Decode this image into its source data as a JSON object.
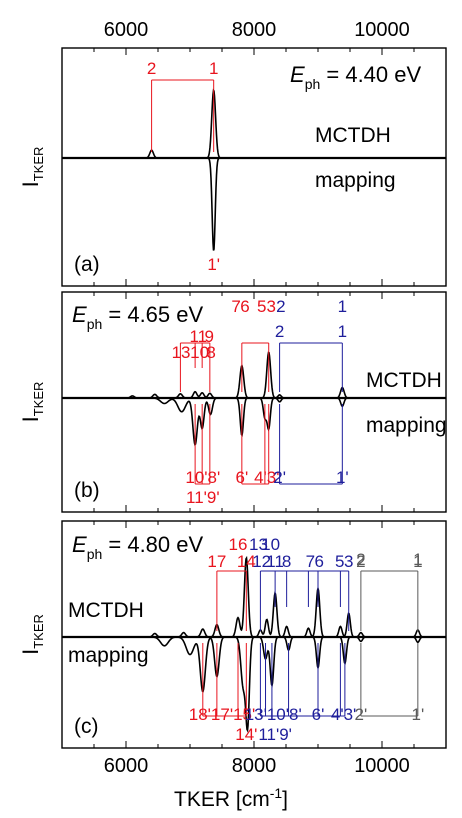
{
  "chart_data": {
    "type": "line",
    "xlabel": "TKER [cm",
    "xlabel_sup": "-1",
    "xlabel_close": "]",
    "ylabel": "I",
    "ylabel_sub": "TKER",
    "xlim": [
      5000,
      11000
    ],
    "xticks": [
      6000,
      8000,
      10000
    ],
    "colors": {
      "red": "#e8141e",
      "blue": "#1e1e9b",
      "gray": "#5a5a5a",
      "black": "#000000"
    },
    "panels": [
      {
        "id": "a",
        "panel_label": "(a)",
        "ephoton_symbol": "E",
        "ephoton_sub": "ph",
        "ephoton_value": "= 4.40 eV",
        "upper_label": "MCTDH",
        "lower_label": "mapping",
        "upper_peaks": [
          {
            "x": 6400,
            "h": 0.1,
            "w": 28
          },
          {
            "x": 7370,
            "h": 0.87,
            "w": 30
          }
        ],
        "lower_peaks": [
          {
            "x": 7370,
            "h": 0.95,
            "w": 24
          }
        ],
        "brackets": [
          {
            "color": "red",
            "side": "up",
            "xs": [
              6400,
              7370
            ],
            "labels": [
              "2",
              "1"
            ]
          }
        ],
        "lower_labels": [
          {
            "text": "1'",
            "x": 7370,
            "color": "red"
          }
        ]
      },
      {
        "id": "b",
        "panel_label": "(b)",
        "ephoton_symbol": "E",
        "ephoton_sub": "ph",
        "ephoton_value": "= 4.65 eV",
        "upper_label": "MCTDH",
        "lower_label": "mapping",
        "upper_peaks": [
          {
            "x": 6100,
            "h": 0.04,
            "w": 30
          },
          {
            "x": 6450,
            "h": 0.07,
            "w": 30
          },
          {
            "x": 6850,
            "h": 0.08,
            "w": 30
          },
          {
            "x": 7080,
            "h": 0.12,
            "w": 28
          },
          {
            "x": 7190,
            "h": 0.1,
            "w": 28
          },
          {
            "x": 7310,
            "h": 0.09,
            "w": 28
          },
          {
            "x": 7810,
            "h": 0.62,
            "w": 30
          },
          {
            "x": 8230,
            "h": 0.88,
            "w": 30
          },
          {
            "x": 8400,
            "h": 0.06,
            "w": 25
          },
          {
            "x": 9380,
            "h": 0.2,
            "w": 28
          }
        ],
        "lower_peaks": [
          {
            "x": 6600,
            "h": 0.1,
            "w": 60
          },
          {
            "x": 6870,
            "h": 0.25,
            "w": 60
          },
          {
            "x": 7080,
            "h": 0.85,
            "w": 35
          },
          {
            "x": 7190,
            "h": 0.55,
            "w": 30
          },
          {
            "x": 7320,
            "h": 0.3,
            "w": 30
          },
          {
            "x": 7810,
            "h": 0.68,
            "w": 25
          },
          {
            "x": 8170,
            "h": 0.35,
            "w": 25
          },
          {
            "x": 8230,
            "h": 0.55,
            "w": 25
          },
          {
            "x": 8400,
            "h": 0.07,
            "w": 25
          },
          {
            "x": 9380,
            "h": 0.15,
            "w": 25
          }
        ],
        "brackets": [
          {
            "color": "red",
            "side": "up",
            "xs": [
              6850,
              7080,
              7190,
              7310
            ],
            "labels": [
              "13",
              "10",
              "11",
              "9",
              "8"
            ],
            "label_mode": "stacked"
          },
          {
            "color": "red",
            "side": "up",
            "xs": [
              7810,
              8230
            ],
            "labels": [
              "7",
              "6",
              "5",
              "3"
            ],
            "label_mode": "pairs"
          },
          {
            "color": "blue",
            "side": "up",
            "xs": [
              8400,
              9380
            ],
            "labels": [
              "2",
              "1"
            ]
          },
          {
            "color": "red",
            "side": "down",
            "xs": [
              7080,
              7190,
              7310
            ],
            "labels": [],
            "label_mode": "none"
          },
          {
            "color": "red",
            "side": "down",
            "xs": [
              7810,
              8170,
              8230
            ],
            "labels": [],
            "label_mode": "none"
          },
          {
            "color": "blue",
            "side": "down",
            "xs": [
              8400,
              9380
            ],
            "labels": [],
            "label_mode": "none"
          }
        ],
        "lower_labels": [
          {
            "text": "10'8'",
            "x": 7200,
            "row": 0,
            "color": "red"
          },
          {
            "text": "11'9'",
            "x": 7200,
            "row": 1,
            "color": "red"
          },
          {
            "text": "6'",
            "x": 7810,
            "row": 0,
            "color": "red"
          },
          {
            "text": "4'3'",
            "x": 8200,
            "row": 0,
            "color": "red"
          },
          {
            "text": "2'",
            "x": 8400,
            "row": 0,
            "color": "blue"
          },
          {
            "text": "1'",
            "x": 9380,
            "row": 0,
            "color": "blue"
          }
        ],
        "upper_stack_labels": [
          {
            "text": "11",
            "x": 7130,
            "row": 1,
            "color": "red"
          },
          {
            "text": "9",
            "x": 7300,
            "row": 1,
            "color": "red"
          },
          {
            "text": "13",
            "x": 6860,
            "row": 0,
            "color": "red"
          },
          {
            "text": "10",
            "x": 7150,
            "row": 0,
            "color": "red"
          },
          {
            "text": "8",
            "x": 7330,
            "row": 0,
            "color": "red"
          },
          {
            "text": "7",
            "x": 7720,
            "row": 2,
            "color": "red"
          },
          {
            "text": "6",
            "x": 7860,
            "row": 2,
            "color": "red"
          },
          {
            "text": "5",
            "x": 8120,
            "row": 2,
            "color": "red"
          },
          {
            "text": "3",
            "x": 8270,
            "row": 2,
            "color": "red"
          },
          {
            "text": "2",
            "x": 8420,
            "row": 2,
            "color": "blue"
          },
          {
            "text": "1",
            "x": 9380,
            "row": 2,
            "color": "blue"
          }
        ]
      },
      {
        "id": "c",
        "panel_label": "(c)",
        "ephoton_symbol": "E",
        "ephoton_sub": "ph",
        "ephoton_value": "= 4.80 eV",
        "upper_label": "MCTDH",
        "lower_label": "mapping",
        "upper_peaks": [
          {
            "x": 6450,
            "h": 0.04,
            "w": 30
          },
          {
            "x": 6900,
            "h": 0.05,
            "w": 30
          },
          {
            "x": 7200,
            "h": 0.09,
            "w": 30
          },
          {
            "x": 7420,
            "h": 0.14,
            "w": 30
          },
          {
            "x": 7750,
            "h": 0.22,
            "w": 30
          },
          {
            "x": 7880,
            "h": 0.9,
            "w": 30
          },
          {
            "x": 8100,
            "h": 0.08,
            "w": 25
          },
          {
            "x": 8200,
            "h": 0.2,
            "w": 25
          },
          {
            "x": 8330,
            "h": 0.5,
            "w": 28
          },
          {
            "x": 8510,
            "h": 0.12,
            "w": 25
          },
          {
            "x": 8850,
            "h": 0.1,
            "w": 25
          },
          {
            "x": 9000,
            "h": 0.55,
            "w": 28
          },
          {
            "x": 9350,
            "h": 0.12,
            "w": 25
          },
          {
            "x": 9480,
            "h": 0.27,
            "w": 25
          },
          {
            "x": 9670,
            "h": 0.05,
            "w": 25
          },
          {
            "x": 10560,
            "h": 0.08,
            "w": 25
          }
        ],
        "lower_peaks": [
          {
            "x": 6600,
            "h": 0.1,
            "w": 60
          },
          {
            "x": 7000,
            "h": 0.2,
            "w": 60
          },
          {
            "x": 7200,
            "h": 0.62,
            "w": 40
          },
          {
            "x": 7420,
            "h": 0.45,
            "w": 35
          },
          {
            "x": 7830,
            "h": 0.55,
            "w": 35
          },
          {
            "x": 7900,
            "h": 0.98,
            "w": 28
          },
          {
            "x": 8180,
            "h": 0.25,
            "w": 30
          },
          {
            "x": 8280,
            "h": 0.55,
            "w": 28
          },
          {
            "x": 8540,
            "h": 0.15,
            "w": 25
          },
          {
            "x": 9000,
            "h": 0.35,
            "w": 25
          },
          {
            "x": 9420,
            "h": 0.3,
            "w": 25
          },
          {
            "x": 9670,
            "h": 0.05,
            "w": 25
          },
          {
            "x": 10560,
            "h": 0.06,
            "w": 25
          }
        ],
        "brackets": [
          {
            "color": "red",
            "side": "up",
            "xs": [
              7420,
              7880
            ],
            "labels": [],
            "label_mode": "none"
          },
          {
            "color": "blue",
            "side": "up",
            "xs": [
              8100,
              8330,
              8510,
              8850,
              9000,
              9350,
              9480
            ],
            "labels": [],
            "label_mode": "none"
          },
          {
            "color": "gray",
            "side": "up",
            "xs": [
              9670,
              10560
            ],
            "labels": [
              "2",
              "1"
            ]
          },
          {
            "color": "red",
            "side": "down",
            "xs": [
              7200,
              7420,
              7750,
              7880
            ],
            "labels": [],
            "label_mode": "none"
          },
          {
            "color": "blue",
            "side": "down",
            "xs": [
              8100,
              8180,
              8280,
              8540,
              9000,
              9350,
              9420
            ],
            "labels": [],
            "label_mode": "none"
          },
          {
            "color": "gray",
            "side": "down",
            "xs": [
              9670,
              10560
            ],
            "labels": [],
            "label_mode": "none"
          }
        ],
        "upper_stack_labels": [
          {
            "text": "16",
            "x": 7750,
            "row": 2,
            "color": "red"
          },
          {
            "text": "17",
            "x": 7420,
            "row": 1,
            "color": "red"
          },
          {
            "text": "14",
            "x": 7880,
            "row": 1,
            "color": "red"
          },
          {
            "text": "13",
            "x": 8070,
            "row": 2,
            "color": "blue"
          },
          {
            "text": "10",
            "x": 8260,
            "row": 2,
            "color": "blue"
          },
          {
            "text": "12",
            "x": 8120,
            "row": 1,
            "color": "blue"
          },
          {
            "text": "11",
            "x": 8330,
            "row": 1,
            "color": "blue"
          },
          {
            "text": "8",
            "x": 8510,
            "row": 1,
            "color": "blue"
          },
          {
            "text": "7",
            "x": 8880,
            "row": 1,
            "color": "blue"
          },
          {
            "text": "6",
            "x": 9020,
            "row": 1,
            "color": "blue"
          },
          {
            "text": "5",
            "x": 9340,
            "row": 1,
            "color": "blue"
          },
          {
            "text": "3",
            "x": 9480,
            "row": 1,
            "color": "blue"
          },
          {
            "text": "2",
            "x": 9670,
            "row": 1,
            "color": "gray"
          },
          {
            "text": "1",
            "x": 10560,
            "row": 1,
            "color": "gray"
          }
        ],
        "lower_labels": [
          {
            "text": "18'17'15'",
            "x": 7500,
            "row": 0,
            "color": "red"
          },
          {
            "text": "14'",
            "x": 7880,
            "row": 1,
            "color": "red"
          },
          {
            "text": "13'10'8'",
            "x": 8300,
            "row": 0,
            "color": "blue"
          },
          {
            "text": "11'9'",
            "x": 8330,
            "row": 1,
            "color": "blue"
          },
          {
            "text": "6'",
            "x": 9000,
            "row": 0,
            "color": "blue"
          },
          {
            "text": "4'3'",
            "x": 9400,
            "row": 0,
            "color": "blue"
          },
          {
            "text": "2'",
            "x": 9670,
            "row": 0,
            "color": "gray"
          },
          {
            "text": "1'",
            "x": 10560,
            "row": 0,
            "color": "gray"
          }
        ]
      }
    ]
  }
}
